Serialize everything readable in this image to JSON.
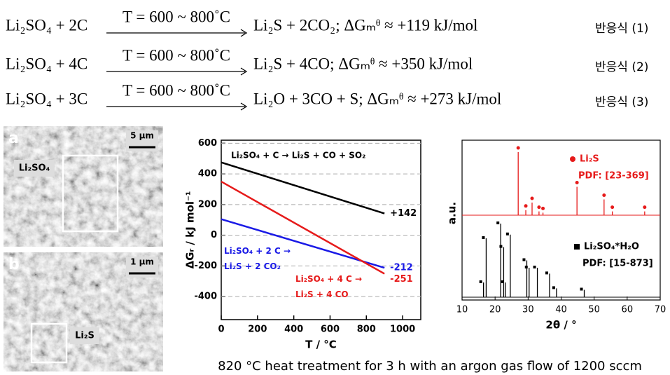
{
  "equations": [
    {
      "lhs": "Li₂SO₄ + 2C",
      "condition": "T = 600 ~ 800˚C",
      "rhs": "Li₂S + 2CO₂; ΔGₘᶿ ≈ +119 kJ/mol",
      "label": "반응식 (1)"
    },
    {
      "lhs": "Li₂SO₄ + 4C",
      "condition": "T = 600 ~ 800˚C",
      "rhs": "Li₂S + 4CO; ΔGₘᶿ ≈ +350 kJ/mol",
      "label": "반응식 (2)"
    },
    {
      "lhs": "Li₂SO₄ + 3C",
      "condition": "T = 600 ~ 800˚C",
      "rhs": "Li₂O + 3CO + S; ΔGₘᶿ ≈ +273 kJ/mol",
      "label": "반응식 (3)"
    }
  ],
  "images": [
    {
      "panel": "a",
      "scale": "5 µm",
      "label": "Li₂SO₄"
    },
    {
      "panel": "b",
      "scale": "1 µm",
      "label": "Li₂S"
    }
  ],
  "chart_data": [
    {
      "type": "line",
      "xlabel": "T / °C",
      "ylabel": "ΔGᵣ / kJ mol⁻¹",
      "x": [
        0,
        900
      ],
      "xlim": [
        0,
        1100
      ],
      "xticks": [
        0,
        200,
        400,
        600,
        800,
        1000
      ],
      "ylim": [
        -550,
        620
      ],
      "yticks": [
        -400,
        -200,
        0,
        200,
        400,
        600
      ],
      "grid": true,
      "series": [
        {
          "name": "Li₂SO₄ + C → Li₂S + CO + SO₂",
          "color": "#000000",
          "values": [
            475,
            142
          ],
          "value_labels": [
            null,
            "+142"
          ]
        },
        {
          "name": "Li₂SO₄ + 2 C → Li₂S + 2 CO₂",
          "color": "#1a1ae6",
          "values": [
            105,
            -212
          ],
          "value_labels": [
            null,
            "-212"
          ]
        },
        {
          "name": "Li₂SO₄ + 4 C → Li₂S + 4 CO",
          "color": "#e61a1a",
          "values": [
            350,
            -251
          ],
          "value_labels": [
            null,
            "-251"
          ]
        }
      ]
    },
    {
      "type": "xrd",
      "xlabel": "2θ / °",
      "ylabel": "a.u.",
      "xlim": [
        10,
        70
      ],
      "xticks": [
        10,
        20,
        30,
        40,
        50,
        60,
        70
      ],
      "series": [
        {
          "name": "Li₂S",
          "pdf": "PDF: [23-369]",
          "color": "#e61a1a",
          "marker": "circle",
          "x": [
            27,
            29.3,
            31.2,
            33.3,
            34.5,
            44.8,
            53,
            55.5,
            65.3
          ],
          "values": [
            100,
            8,
            20,
            6,
            4,
            45,
            25,
            6,
            6
          ]
        },
        {
          "name": "Li₂SO₄*H₂O",
          "pdf": "PDF: [15-873]",
          "color": "#000000",
          "marker": "square",
          "x": [
            16.5,
            17.3,
            21.7,
            22.6,
            23.1,
            24.6,
            29.6,
            30.3,
            32.8,
            36.5,
            38.6,
            47
          ],
          "values": [
            20,
            80,
            100,
            68,
            20,
            85,
            50,
            40,
            40,
            32,
            12,
            10
          ]
        }
      ]
    }
  ],
  "caption": "820 °C heat treatment for 3 h with an argon gas flow of 1200 sccm"
}
